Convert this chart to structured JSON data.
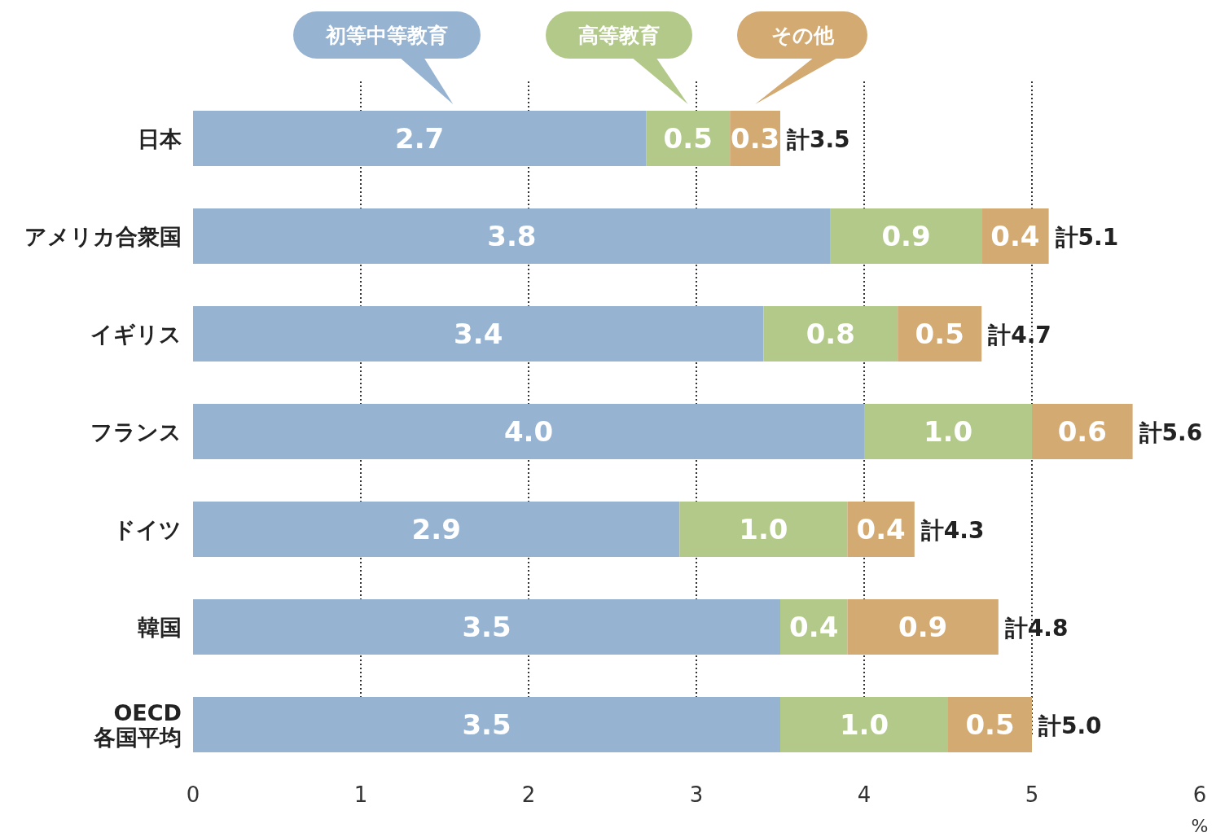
{
  "chart_data": {
    "type": "bar",
    "orientation": "horizontal",
    "stacked": true,
    "grid": "x",
    "legend": "top",
    "xlabel": "%",
    "categories": [
      "日本",
      "アメリカ合衆国",
      "イギリス",
      "フランス",
      "ドイツ",
      "韓国",
      "OECD 各国平均"
    ],
    "series": [
      {
        "name": "初等中等教育",
        "color": "#97b3d2",
        "values": [
          2.7,
          3.8,
          3.4,
          4.0,
          2.9,
          3.5,
          3.5
        ],
        "value_labels": [
          "2.7",
          "3.8",
          "3.4",
          "4.0",
          "2.9",
          "3.5",
          "3.5"
        ]
      },
      {
        "name": "高等教育",
        "color": "#b3c98a",
        "values": [
          0.5,
          0.9,
          0.8,
          1.0,
          1.0,
          0.4,
          1.0
        ],
        "value_labels": [
          "0.5",
          "0.9",
          "0.8",
          "1.0",
          "1.0",
          "0.4",
          "1.0"
        ]
      },
      {
        "name": "その他",
        "color": "#d2aa72",
        "values": [
          0.3,
          0.4,
          0.5,
          0.6,
          0.4,
          0.9,
          0.5
        ],
        "value_labels": [
          "0.3",
          "0.4",
          "0.5",
          "0.6",
          "0.4",
          "0.9",
          "0.5"
        ]
      }
    ],
    "totals": [
      "計3.5",
      "計5.1",
      "計4.7",
      "計5.6",
      "計4.3",
      "計4.8",
      "計5.0"
    ],
    "xlim": [
      0,
      6
    ],
    "xticks": [
      0,
      1,
      2,
      3,
      4,
      5,
      6
    ]
  }
}
